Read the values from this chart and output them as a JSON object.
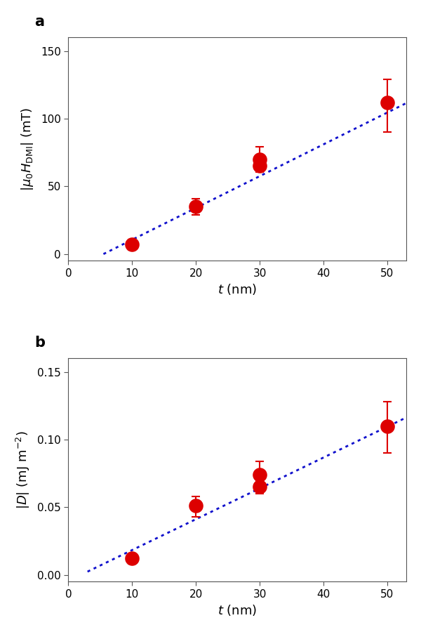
{
  "panel_a": {
    "xlim": [
      0,
      53
    ],
    "ylim": [
      -5,
      160
    ],
    "xticks": [
      0,
      10,
      20,
      30,
      40,
      50
    ],
    "yticks": [
      0,
      50,
      100,
      150
    ],
    "data_x": [
      10,
      20,
      30,
      30,
      50
    ],
    "data_y": [
      7.0,
      35.0,
      70.0,
      65.0,
      112.0
    ],
    "err_up": [
      3.5,
      6.0,
      9.0,
      3.5,
      17.0
    ],
    "err_down": [
      4.0,
      6.0,
      3.5,
      4.5,
      22.0
    ],
    "fit_x_start": 5.5,
    "fit_x_end": 53,
    "fit_slope": 2.35,
    "fit_intercept": -13.0,
    "dot_color": "#1010cc",
    "marker_color": "#dd0000",
    "marker_size": 220
  },
  "panel_b": {
    "xlim": [
      0,
      53
    ],
    "ylim": [
      -0.005,
      0.16
    ],
    "xticks": [
      0,
      10,
      20,
      30,
      40,
      50
    ],
    "yticks": [
      0.0,
      0.05,
      0.1,
      0.15
    ],
    "data_x": [
      10,
      20,
      30,
      30,
      50
    ],
    "data_y": [
      0.012,
      0.051,
      0.074,
      0.065,
      0.11
    ],
    "err_up": [
      0.004,
      0.007,
      0.01,
      0.004,
      0.018
    ],
    "err_down": [
      0.004,
      0.008,
      0.004,
      0.005,
      0.02
    ],
    "fit_x_start": 3.0,
    "fit_x_end": 53,
    "fit_slope": 0.00228,
    "fit_intercept": -0.0045,
    "dot_color": "#1010cc",
    "marker_color": "#dd0000",
    "marker_size": 220
  },
  "figure_bg": "#ffffff",
  "panel_bg": "#ffffff",
  "spine_color": "#555555",
  "tick_label_size": 11,
  "axis_label_size": 13,
  "panel_label_size": 15,
  "dot_linewidth": 2.0,
  "elinewidth": 1.5,
  "capsize": 4,
  "capthick": 1.5
}
